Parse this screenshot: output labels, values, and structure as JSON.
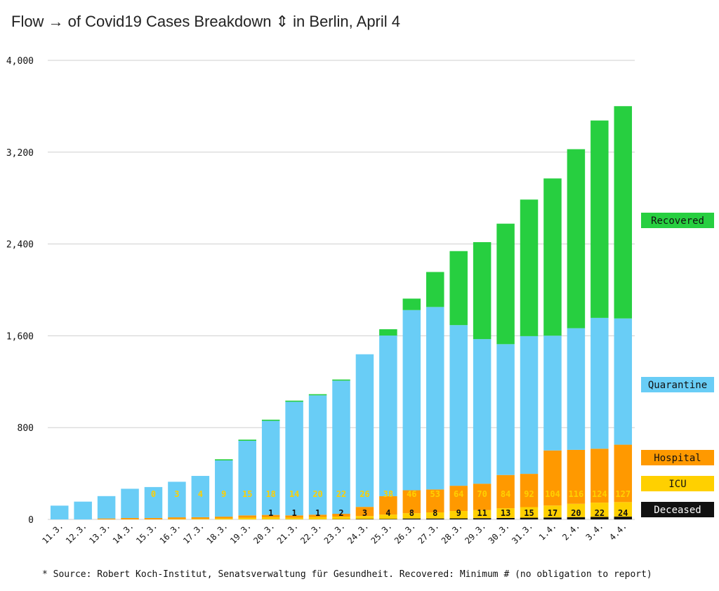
{
  "chart_data": {
    "type": "bar",
    "stacked": true,
    "title": "Flow → of Covid19 Cases Breakdown ⇕ in Berlin, April 4",
    "source": "* Source: Robert Koch-Institut, Senatsverwaltung für Gesundheit. Recovered: Minimum # (no obligation to report)",
    "ylim": [
      0,
      4000
    ],
    "yticks": [
      0,
      800,
      1600,
      2400,
      3200,
      4000
    ],
    "ytick_labels": [
      "0",
      "800",
      "1,600",
      "2,400",
      "3,200",
      "4,000"
    ],
    "grid": true,
    "legend_placement": "right",
    "categories": [
      "11.3.",
      "12.3.",
      "13.3.",
      "14.3.",
      "15.3.",
      "16.3.",
      "17.3.",
      "18.3.",
      "19.3.",
      "20.3.",
      "21.3.",
      "22.3.",
      "23.3.",
      "24.3.",
      "25.3.",
      "26.3.",
      "27.3.",
      "28.3.",
      "29.3.",
      "30.3.",
      "31.3.",
      "1.4.",
      "2.4.",
      "3.4.",
      "4.4."
    ],
    "series": [
      {
        "name": "Deceased",
        "color": "#111111",
        "values": [
          0,
          0,
          0,
          0,
          0,
          0,
          0,
          0,
          0,
          1,
          1,
          1,
          2,
          3,
          4,
          8,
          8,
          9,
          11,
          13,
          15,
          17,
          20,
          22,
          24
        ]
      },
      {
        "name": "ICU",
        "color": "#ffd000",
        "values": [
          0,
          0,
          0,
          0,
          0,
          3,
          4,
          9,
          15,
          18,
          14,
          20,
          22,
          26,
          38,
          46,
          53,
          64,
          70,
          84,
          92,
          104,
          116,
          124,
          127
        ]
      },
      {
        "name": "Hospital",
        "color": "#ff9900",
        "values": [
          0,
          0,
          8,
          12,
          12,
          15,
          15,
          15,
          20,
          20,
          20,
          20,
          25,
          80,
          160,
          200,
          200,
          220,
          230,
          290,
          290,
          480,
          470,
          470,
          500
        ]
      },
      {
        "name": "Quarantine",
        "color": "#69cdf6",
        "values": [
          120,
          155,
          195,
          255,
          270,
          310,
          360,
          490,
          650,
          820,
          990,
          1040,
          1160,
          1330,
          1400,
          1570,
          1590,
          1400,
          1260,
          1140,
          1200,
          1000,
          1060,
          1140,
          1100
        ]
      },
      {
        "name": "Recovered",
        "color": "#27cf40",
        "values": [
          0,
          0,
          0,
          0,
          0,
          0,
          0,
          10,
          10,
          10,
          10,
          10,
          10,
          0,
          55,
          100,
          305,
          645,
          845,
          1050,
          1190,
          1370,
          1560,
          1720,
          1850
        ]
      }
    ],
    "labels": {
      "ICU": [
        null,
        null,
        null,
        null,
        "0",
        "3",
        "4",
        "9",
        "15",
        "18",
        "14",
        "20",
        "22",
        "26",
        "38",
        "46",
        "53",
        "64",
        "70",
        "84",
        "92",
        "104",
        "116",
        "124",
        "127"
      ],
      "Deceased": [
        null,
        null,
        null,
        null,
        null,
        null,
        null,
        null,
        null,
        "1",
        "1",
        "1",
        "2",
        "3",
        "4",
        "8",
        "8",
        "9",
        "11",
        "13",
        "15",
        "17",
        "20",
        "22",
        "24"
      ]
    }
  }
}
